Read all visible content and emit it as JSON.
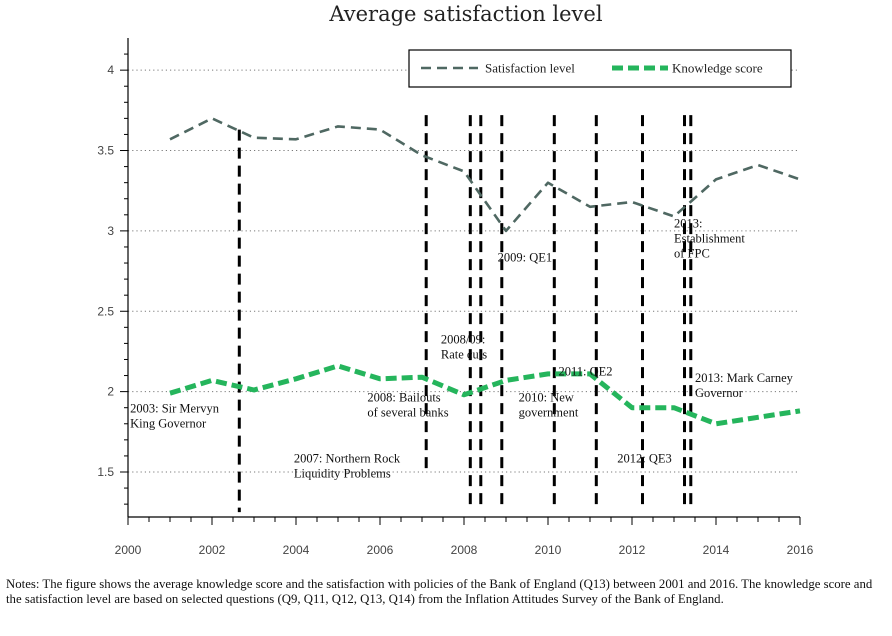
{
  "chart_data": {
    "type": "line",
    "title": "Average satisfaction level",
    "xlabel": "",
    "ylabel": "",
    "xlim": [
      2000,
      2016
    ],
    "ylim": [
      1.22,
      4.2
    ],
    "xticks": [
      2000,
      2002,
      2004,
      2006,
      2008,
      2010,
      2012,
      2014,
      2016
    ],
    "yticks": [
      1.5,
      2,
      2.5,
      3,
      3.5,
      4
    ],
    "ytick_labels": [
      "1.5",
      "2",
      "2.5",
      "3",
      "3.5",
      "4"
    ],
    "grid": "horizontal dotted",
    "legend_position": "top-right",
    "series": [
      {
        "name": "Satisfaction level",
        "style": "dashed",
        "color": "#4f6862",
        "points": [
          [
            2001,
            3.57
          ],
          [
            2002,
            3.7
          ],
          [
            2003,
            3.58
          ],
          [
            2004,
            3.57
          ],
          [
            2005,
            3.65
          ],
          [
            2006,
            3.63
          ],
          [
            2007,
            3.47
          ],
          [
            2008,
            3.37
          ],
          [
            2009,
            3.0
          ],
          [
            2010,
            3.3
          ],
          [
            2011,
            3.15
          ],
          [
            2012,
            3.18
          ],
          [
            2013,
            3.09
          ],
          [
            2014,
            3.32
          ],
          [
            2015,
            3.41
          ],
          [
            2016,
            3.32
          ]
        ]
      },
      {
        "name": "Knowledge score",
        "style": "thick-dashed",
        "color": "#25b55c",
        "points": [
          [
            2001,
            1.99
          ],
          [
            2002,
            2.07
          ],
          [
            2003,
            2.01
          ],
          [
            2004,
            2.08
          ],
          [
            2005,
            2.16
          ],
          [
            2006,
            2.08
          ],
          [
            2007,
            2.09
          ],
          [
            2008,
            1.98
          ],
          [
            2009,
            2.07
          ],
          [
            2010,
            2.11
          ],
          [
            2011,
            2.11
          ],
          [
            2012,
            1.9
          ],
          [
            2013,
            1.9
          ],
          [
            2014,
            1.8
          ],
          [
            2015,
            1.84
          ],
          [
            2016,
            1.88
          ]
        ]
      }
    ],
    "event_lines": [
      {
        "x": 2002.65,
        "y_top": 3.63,
        "y_bottom": 1.25
      },
      {
        "x": 2007.1,
        "y_top": 3.72,
        "y_bottom": 1.52
      },
      {
        "x": 2008.15,
        "y_top": 3.72,
        "y_bottom": 1.29
      },
      {
        "x": 2008.4,
        "y_top": 3.72,
        "y_bottom": 1.29
      },
      {
        "x": 2008.9,
        "y_top": 3.72,
        "y_bottom": 1.27
      },
      {
        "x": 2010.15,
        "y_top": 3.72,
        "y_bottom": 1.27
      },
      {
        "x": 2011.15,
        "y_top": 3.72,
        "y_bottom": 1.27
      },
      {
        "x": 2012.25,
        "y_top": 3.72,
        "y_bottom": 1.27
      },
      {
        "x": 2013.25,
        "y_top": 3.72,
        "y_bottom": 1.27
      },
      {
        "x": 2013.4,
        "y_top": 3.72,
        "y_bottom": 1.29
      }
    ],
    "annotations": [
      {
        "lines": [
          "2003: Sir Mervyn",
          "King Governor"
        ],
        "x": 2000.05,
        "y": 1.87
      },
      {
        "lines": [
          "2007: Northern Rock",
          "Liquidity Problems"
        ],
        "x": 2003.95,
        "y": 1.56
      },
      {
        "lines": [
          "2008: Bailouts",
          "of several banks"
        ],
        "x": 2005.7,
        "y": 1.94
      },
      {
        "lines": [
          "2008/09:",
          "Rate cuts"
        ],
        "x": 2007.45,
        "y": 2.3
      },
      {
        "lines": [
          "2009: QE1"
        ],
        "x": 2008.8,
        "y": 2.81
      },
      {
        "lines": [
          "2010: New",
          "government"
        ],
        "x": 2009.3,
        "y": 1.94
      },
      {
        "lines": [
          "2011: QE2"
        ],
        "x": 2010.25,
        "y": 2.1
      },
      {
        "lines": [
          "2012: QE3"
        ],
        "x": 2011.65,
        "y": 1.56
      },
      {
        "lines": [
          "2013:",
          "Establishment",
          "of FPC"
        ],
        "x": 2013.0,
        "y": 3.02
      },
      {
        "lines": [
          "2013: Mark Carney",
          "Governor"
        ],
        "x": 2013.5,
        "y": 2.06
      }
    ]
  },
  "notes": "Notes: The figure shows the average knowledge score and the satisfaction with policies of the Bank of England (Q13) between 2001 and 2016. The knowledge score and the satisfaction level are based on selected questions (Q9, Q11, Q12, Q13, Q14) from the Inflation Attitudes Survey of the Bank of England."
}
